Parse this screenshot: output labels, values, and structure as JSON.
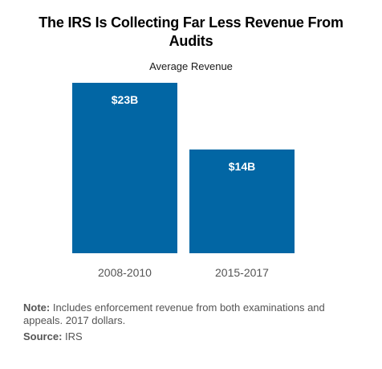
{
  "colors": {
    "bar": "#0266a4",
    "bar_label": "#ffffff",
    "tick_label": "#555555",
    "footnote": "#555555"
  },
  "chart_data": {
    "type": "bar",
    "title": "The IRS Is Collecting Far Less Revenue From Audits",
    "subtitle": "Average Revenue",
    "categories": [
      "2008-2010",
      "2015-2017"
    ],
    "values": [
      23,
      14
    ],
    "data_labels": [
      "$23B",
      "$14B"
    ],
    "unit": "billion dollars",
    "ylim": [
      0,
      23
    ],
    "grid": false,
    "legend": "none"
  },
  "footnotes": {
    "note_label": "Note:",
    "note_text": "Includes enforcement revenue from both examinations and appeals. 2017 dollars.",
    "source_label": "Source:",
    "source_text": "IRS"
  }
}
